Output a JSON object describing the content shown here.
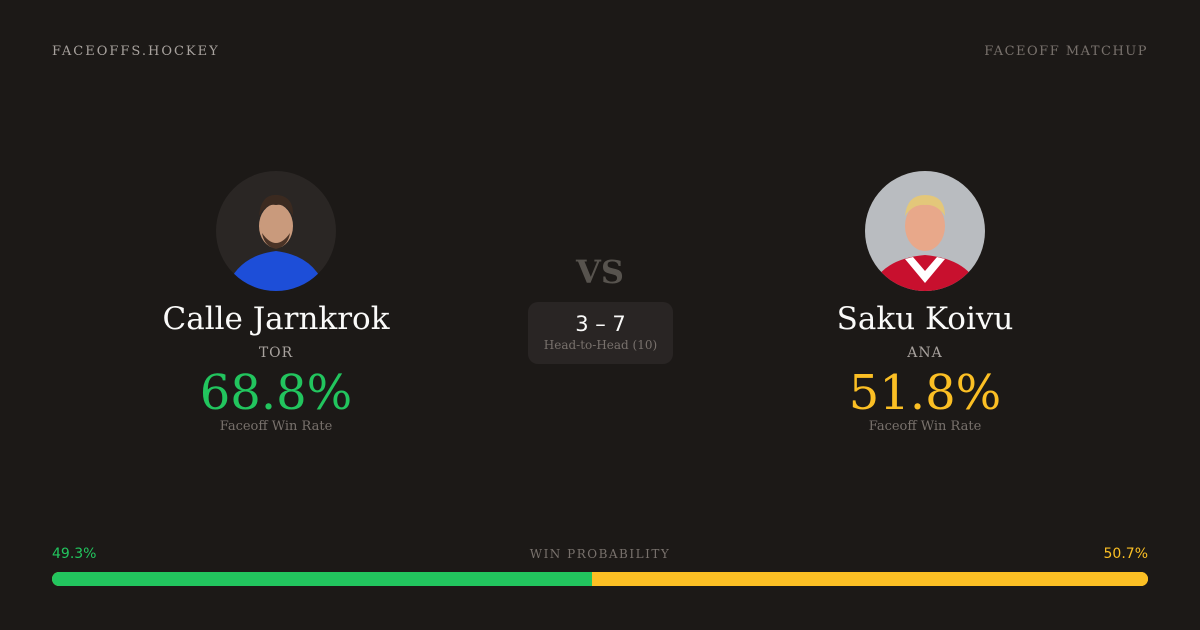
{
  "brand": "FACEOFFS.HOCKEY",
  "tag": "FACEOFF MATCHUP",
  "vs": "VS",
  "head_to_head": {
    "score": "3 – 7",
    "label": "Head-to-Head (10)"
  },
  "players": [
    {
      "name": "Calle Jarnkrok",
      "team": "TOR",
      "rate": "68.8%",
      "rate_label": "Faceoff Win Rate",
      "color": "#22c55e"
    },
    {
      "name": "Saku Koivu",
      "team": "ANA",
      "rate": "51.8%",
      "rate_label": "Faceoff Win Rate",
      "color": "#fbbf24"
    }
  ],
  "win_probability": {
    "label": "WIN PROBABILITY",
    "left": "49.3%",
    "right": "50.7%",
    "left_value": 49.3,
    "right_value": 50.7,
    "left_color": "#22c55e",
    "right_color": "#fbbf24"
  }
}
